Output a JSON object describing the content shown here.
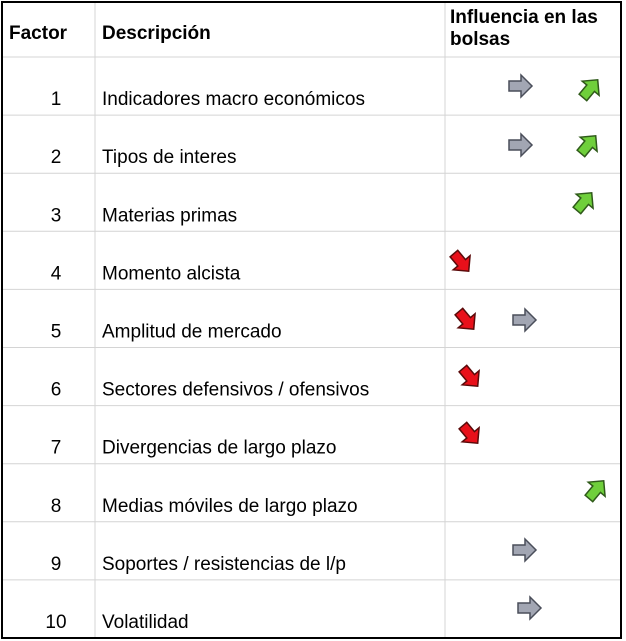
{
  "table": {
    "header": [
      "Factor",
      "Descripción",
      "Influencia en las bolsas"
    ],
    "rows": [
      [
        "1",
        "Indicadores macro económicos"
      ],
      [
        "2",
        "Tipos de interes"
      ],
      [
        "3",
        "Materias primas"
      ],
      [
        "4",
        "Momento alcista"
      ],
      [
        "5",
        "Amplitud de mercado"
      ],
      [
        "6",
        "Sectores defensivos / ofensivos"
      ],
      [
        "7",
        "Divergencias de largo plazo"
      ],
      [
        "8",
        "Medias móviles de largo plazo"
      ],
      [
        "9",
        "Soportes / resistencias de l/p"
      ],
      [
        "10",
        "Volatilidad"
      ]
    ]
  }
}
